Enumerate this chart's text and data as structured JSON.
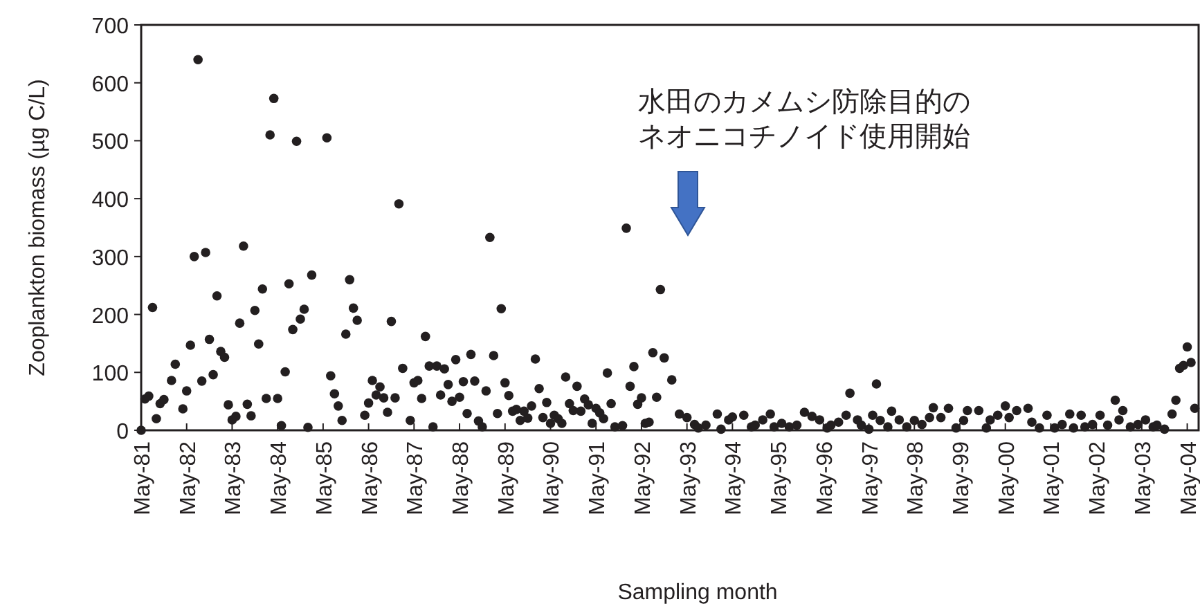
{
  "chart_data": {
    "type": "scatter",
    "xlabel": "Sampling month",
    "ylabel": "Zooplankton biomass (µg C/L)",
    "marker": "circle",
    "color": "#231f20",
    "xlim": [
      "1981-05",
      "2004-08"
    ],
    "ylim": [
      0,
      700
    ],
    "yticks": [
      0,
      100,
      200,
      300,
      400,
      500,
      600,
      700
    ],
    "xticks": [
      {
        "value": "1981-05",
        "label": "May-81"
      },
      {
        "value": "1982-05",
        "label": "May-82"
      },
      {
        "value": "1983-05",
        "label": "May-83"
      },
      {
        "value": "1984-05",
        "label": "May-84"
      },
      {
        "value": "1985-05",
        "label": "May-85"
      },
      {
        "value": "1986-05",
        "label": "May-86"
      },
      {
        "value": "1987-05",
        "label": "May-87"
      },
      {
        "value": "1988-05",
        "label": "May-88"
      },
      {
        "value": "1989-05",
        "label": "May-89"
      },
      {
        "value": "1990-05",
        "label": "May-90"
      },
      {
        "value": "1991-05",
        "label": "May-91"
      },
      {
        "value": "1992-05",
        "label": "May-92"
      },
      {
        "value": "1993-05",
        "label": "May-93"
      },
      {
        "value": "1994-05",
        "label": "May-94"
      },
      {
        "value": "1995-05",
        "label": "May-95"
      },
      {
        "value": "1996-05",
        "label": "May-96"
      },
      {
        "value": "1997-05",
        "label": "May-97"
      },
      {
        "value": "1998-05",
        "label": "May-98"
      },
      {
        "value": "1999-05",
        "label": "May-99"
      },
      {
        "value": "2000-05",
        "label": "May-00"
      },
      {
        "value": "2001-05",
        "label": "May-01"
      },
      {
        "value": "2002-05",
        "label": "May-02"
      },
      {
        "value": "2003-05",
        "label": "May-03"
      },
      {
        "value": "2004-05",
        "label": "May-04"
      }
    ],
    "x": [
      "1981-05",
      "1981-06",
      "1981-07",
      "1981-08",
      "1981-09",
      "1981-10",
      "1981-11",
      "1982-01",
      "1982-02",
      "1982-04",
      "1982-05",
      "1982-06",
      "1982-07",
      "1982-08",
      "1982-09",
      "1982-10",
      "1982-11",
      "1982-12",
      "1983-01",
      "1983-02",
      "1983-03",
      "1983-04",
      "1983-05",
      "1983-06",
      "1983-07",
      "1983-08",
      "1983-09",
      "1983-10",
      "1983-11",
      "1983-12",
      "1984-01",
      "1984-02",
      "1984-03",
      "1984-04",
      "1984-05",
      "1984-06",
      "1984-07",
      "1984-08",
      "1984-09",
      "1984-10",
      "1984-11",
      "1984-12",
      "1985-01",
      "1985-02",
      "1985-06",
      "1985-07",
      "1985-08",
      "1985-09",
      "1985-10",
      "1985-11",
      "1985-12",
      "1986-01",
      "1986-02",
      "1986-04",
      "1986-05",
      "1986-06",
      "1986-07",
      "1986-08",
      "1986-09",
      "1986-10",
      "1986-11",
      "1986-12",
      "1987-01",
      "1987-02",
      "1987-04",
      "1987-05",
      "1987-06",
      "1987-07",
      "1987-08",
      "1987-09",
      "1987-10",
      "1987-11",
      "1987-12",
      "1988-01",
      "1988-02",
      "1988-03",
      "1988-04",
      "1988-05",
      "1988-06",
      "1988-07",
      "1988-08",
      "1988-09",
      "1988-10",
      "1988-11",
      "1988-12",
      "1989-01",
      "1989-02",
      "1989-03",
      "1989-04",
      "1989-05",
      "1989-06",
      "1989-07",
      "1989-08",
      "1989-09",
      "1989-10",
      "1989-11",
      "1989-12",
      "1990-01",
      "1990-02",
      "1990-03",
      "1990-04",
      "1990-05",
      "1990-06",
      "1990-07",
      "1990-08",
      "1990-09",
      "1990-10",
      "1990-11",
      "1990-12",
      "1991-01",
      "1991-02",
      "1991-03",
      "1991-04",
      "1991-05",
      "1991-06",
      "1991-07",
      "1991-08",
      "1991-09",
      "1991-10",
      "1991-12",
      "1992-01",
      "1992-02",
      "1992-03",
      "1992-04",
      "1992-05",
      "1992-06",
      "1992-07",
      "1992-08",
      "1992-09",
      "1992-10",
      "1992-11",
      "1993-01",
      "1993-03",
      "1993-05",
      "1993-07",
      "1993-08",
      "1993-10",
      "1994-01",
      "1994-02",
      "1994-04",
      "1994-05",
      "1994-08",
      "1994-10",
      "1994-11",
      "1995-01",
      "1995-03",
      "1995-04",
      "1995-06",
      "1995-08",
      "1995-10",
      "1995-12",
      "1996-02",
      "1996-04",
      "1996-06",
      "1996-07",
      "1996-09",
      "1996-11",
      "1996-12",
      "1997-02",
      "1997-03",
      "1997-05",
      "1997-06",
      "1997-07",
      "1997-08",
      "1997-10",
      "1997-11",
      "1998-01",
      "1998-03",
      "1998-05",
      "1998-07",
      "1998-09",
      "1998-10",
      "1998-12",
      "1999-02",
      "1999-04",
      "1999-06",
      "1999-07",
      "1999-10",
      "1999-12",
      "2000-01",
      "2000-03",
      "2000-05",
      "2000-06",
      "2000-08",
      "2000-11",
      "2000-12",
      "2001-02",
      "2001-04",
      "2001-06",
      "2001-08",
      "2001-10",
      "2001-11",
      "2002-01",
      "2002-02",
      "2002-04",
      "2002-06",
      "2002-08",
      "2002-10",
      "2002-11",
      "2002-12",
      "2003-02",
      "2003-04",
      "2003-06",
      "2003-08",
      "2003-09",
      "2003-11",
      "2004-01",
      "2004-02",
      "2004-03",
      "2004-04",
      "2004-05",
      "2004-06",
      "2004-07"
    ],
    "values": [
      0,
      54,
      59,
      212,
      20,
      46,
      53,
      86,
      114,
      37,
      68,
      147,
      300,
      640,
      85,
      307,
      157,
      96,
      232,
      136,
      126,
      44,
      18,
      24,
      185,
      318,
      45,
      25,
      207,
      149,
      244,
      55,
      510,
      573,
      55,
      8,
      101,
      253,
      174,
      499,
      192,
      209,
      5,
      268,
      505,
      94,
      63,
      42,
      17,
      166,
      260,
      211,
      190,
      26,
      47,
      86,
      61,
      75,
      56,
      31,
      188,
      56,
      391,
      107,
      17,
      82,
      86,
      55,
      162,
      111,
      6,
      111,
      61,
      106,
      79,
      50,
      122,
      57,
      84,
      29,
      131,
      85,
      16,
      6,
      68,
      333,
      129,
      29,
      210,
      82,
      60,
      33,
      36,
      17,
      33,
      21,
      42,
      123,
      72,
      22,
      48,
      12,
      26,
      20,
      12,
      92,
      46,
      34,
      76,
      33,
      54,
      44,
      12,
      38,
      30,
      20,
      99,
      46,
      6,
      8,
      349,
      76,
      110,
      45,
      56,
      12,
      14,
      134,
      57,
      243,
      125,
      87,
      28,
      22,
      10,
      4,
      9,
      28,
      2,
      18,
      23,
      26,
      6,
      9,
      18,
      28,
      6,
      12,
      6,
      9,
      31,
      24,
      18,
      4,
      9,
      14,
      26,
      64,
      18,
      9,
      2,
      26,
      80,
      17,
      6,
      33,
      18,
      6,
      17,
      10,
      22,
      39,
      22,
      38,
      4,
      17,
      34,
      34,
      4,
      18,
      26,
      42,
      22,
      34,
      38,
      14,
      4,
      26,
      4,
      10,
      28,
      4,
      26,
      6,
      10,
      26,
      9,
      52,
      18,
      34,
      6,
      10,
      18,
      6,
      9,
      2,
      28,
      52,
      107,
      112,
      144,
      117,
      38
    ],
    "annotations": [
      "水田のカメムシ防除目的のネオニコチノイド使用開始"
    ]
  }
}
